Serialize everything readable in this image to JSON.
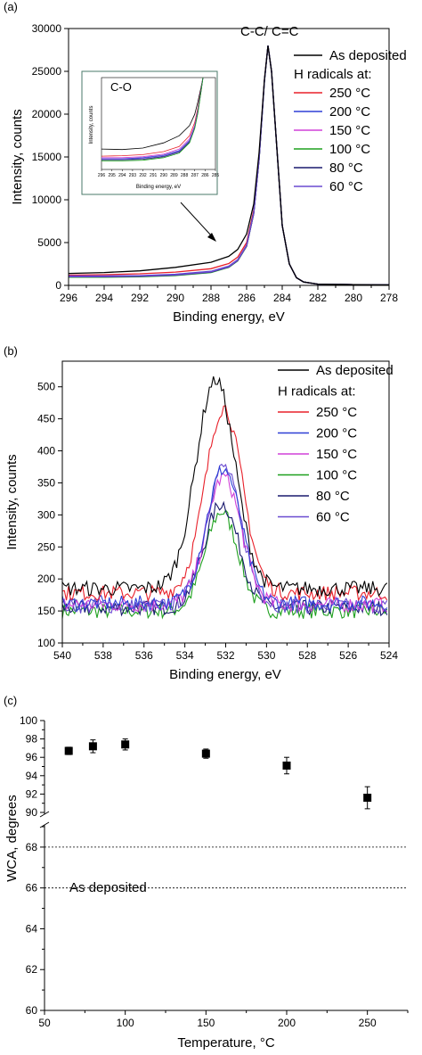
{
  "chart_data": [
    {
      "panel_label": "(a)",
      "type": "line",
      "xlabel": "Binding energy, eV",
      "ylabel": "Intensity, counts",
      "xlim": [
        296,
        278
      ],
      "ylim": [
        0,
        30000
      ],
      "x_ticks": [
        296,
        294,
        292,
        290,
        288,
        286,
        284,
        282,
        280,
        278
      ],
      "y_ticks": [
        0,
        5000,
        10000,
        15000,
        20000,
        25000,
        30000
      ],
      "peak_annotation": "C-C/ C=C",
      "legend_title": "H radicals at:",
      "legend_position": "top-right",
      "series": [
        {
          "name": "As deposited",
          "color": "#000000",
          "x": [
            296,
            294,
            292,
            290,
            288,
            287,
            286.5,
            286,
            285.6,
            285.3,
            285.0,
            284.8,
            284.6,
            284.3,
            284.0,
            283.6,
            283.2,
            282.8,
            282.0,
            280,
            278
          ],
          "y": [
            1400,
            1500,
            1700,
            2100,
            2700,
            3400,
            4200,
            6000,
            9500,
            15500,
            24000,
            28000,
            25000,
            16000,
            7000,
            2500,
            900,
            400,
            150,
            80,
            60
          ]
        },
        {
          "name": "250 °C",
          "color": "#e8202a",
          "x": [
            296,
            294,
            292,
            290,
            288,
            287,
            286.5,
            286,
            285.6,
            285.3,
            285.0,
            284.8,
            284.6,
            284.3,
            284.0,
            283.6,
            283.2,
            282.8,
            282.0,
            280,
            278
          ],
          "y": [
            1200,
            1250,
            1350,
            1550,
            1950,
            2550,
            3300,
            5000,
            8800,
            15000,
            24000,
            28000,
            25000,
            16000,
            7000,
            2500,
            900,
            400,
            150,
            80,
            60
          ]
        },
        {
          "name": "200 °C",
          "color": "#2e3fd6",
          "x": [
            296,
            294,
            292,
            290,
            288,
            287,
            286.5,
            286,
            285.6,
            285.3,
            285.0,
            284.8,
            284.6,
            284.3,
            284.0,
            283.6,
            283.2,
            282.8,
            282.0,
            280,
            278
          ],
          "y": [
            1100,
            1100,
            1150,
            1300,
            1650,
            2250,
            3000,
            4700,
            8500,
            14800,
            23900,
            28000,
            25000,
            16000,
            7000,
            2500,
            900,
            400,
            150,
            80,
            60
          ]
        },
        {
          "name": "150 °C",
          "color": "#d040d8",
          "x": [
            296,
            294,
            292,
            290,
            288,
            287,
            286.5,
            286,
            285.6,
            285.3,
            285.0,
            284.8,
            284.6,
            284.3,
            284.0,
            283.6,
            283.2,
            282.8,
            282.0,
            280,
            278
          ],
          "y": [
            1050,
            1050,
            1100,
            1250,
            1600,
            2200,
            2950,
            4650,
            8450,
            14750,
            23900,
            28000,
            25000,
            16000,
            7000,
            2500,
            900,
            400,
            150,
            80,
            60
          ]
        },
        {
          "name": "100 °C",
          "color": "#1ea01e",
          "x": [
            296,
            294,
            292,
            290,
            288,
            287,
            286.5,
            286,
            285.6,
            285.3,
            285.0,
            284.8,
            284.6,
            284.3,
            284.0,
            283.6,
            283.2,
            282.8,
            282.0,
            280,
            278
          ],
          "y": [
            950,
            950,
            1000,
            1150,
            1500,
            2100,
            2850,
            4550,
            8400,
            14700,
            23850,
            28000,
            25000,
            16000,
            7000,
            2500,
            900,
            400,
            150,
            80,
            60
          ]
        },
        {
          "name": "80 °C",
          "color": "#1a1a6e",
          "x": [
            296,
            294,
            292,
            290,
            288,
            287,
            286.5,
            286,
            285.6,
            285.3,
            285.0,
            284.8,
            284.6,
            284.3,
            284.0,
            283.6,
            283.2,
            282.8,
            282.0,
            280,
            278
          ],
          "y": [
            1000,
            1000,
            1050,
            1200,
            1550,
            2150,
            2900,
            4600,
            8400,
            14700,
            23850,
            28000,
            25000,
            16000,
            7000,
            2500,
            900,
            400,
            150,
            80,
            60
          ]
        },
        {
          "name": "60 °C",
          "color": "#6a4ad0",
          "x": [
            296,
            294,
            292,
            290,
            288,
            287,
            286.5,
            286,
            285.6,
            285.3,
            285.0,
            284.8,
            284.6,
            284.3,
            284.0,
            283.6,
            283.2,
            282.8,
            282.0,
            280,
            278
          ],
          "y": [
            1020,
            1030,
            1080,
            1230,
            1580,
            2180,
            2930,
            4630,
            8430,
            14730,
            23880,
            28000,
            25000,
            16000,
            7000,
            2500,
            900,
            400,
            150,
            80,
            60
          ]
        }
      ],
      "inset": {
        "label": "C-O",
        "xlabel": "Binding energy, eV",
        "ylabel": "Intensity, counts",
        "xlim": [
          296,
          285
        ],
        "x_ticks": [
          296,
          295,
          294,
          293,
          292,
          291,
          290,
          289,
          288,
          287,
          286,
          285
        ],
        "series": [
          {
            "color": "#000000",
            "x": [
              296,
              294,
              292,
              290,
              288.5,
              287.5,
              287,
              286.7,
              286.4,
              286.2
            ],
            "y": [
              3000,
              2950,
              3100,
              3600,
              4300,
              5300,
              6400,
              7600,
              9000,
              10000
            ]
          },
          {
            "color": "#e8202a",
            "x": [
              296,
              294,
              292,
              290,
              288.5,
              287.5,
              287,
              286.7,
              286.4,
              286.2
            ],
            "y": [
              2300,
              2350,
              2450,
              2750,
              3250,
              4300,
              5600,
              7000,
              8800,
              10000
            ]
          },
          {
            "color": "#d040d8",
            "x": [
              296,
              294,
              292,
              290,
              288.5,
              287.5,
              287,
              286.7,
              286.4,
              286.2
            ],
            "y": [
              2150,
              2150,
              2250,
              2500,
              3000,
              4000,
              5300,
              6800,
              8700,
              10000
            ]
          },
          {
            "color": "#2e3fd6",
            "x": [
              296,
              294,
              292,
              290,
              288.5,
              287.5,
              287,
              286.7,
              286.4,
              286.2
            ],
            "y": [
              2050,
              2050,
              2150,
              2400,
              2850,
              3850,
              5200,
              6700,
              8650,
              10000
            ]
          },
          {
            "color": "#1a1a6e",
            "x": [
              296,
              294,
              292,
              290,
              288.5,
              287.5,
              287,
              286.7,
              286.4,
              286.2
            ],
            "y": [
              1950,
              1950,
              2000,
              2250,
              2700,
              3700,
              5100,
              6600,
              8600,
              10000
            ]
          },
          {
            "color": "#6a4ad0",
            "x": [
              296,
              294,
              292,
              290,
              288.5,
              287.5,
              287,
              286.7,
              286.4,
              286.2
            ],
            "y": [
              2000,
              2000,
              2080,
              2320,
              2780,
              3780,
              5150,
              6650,
              8620,
              10000
            ]
          },
          {
            "color": "#1ea01e",
            "x": [
              296,
              294,
              292,
              290,
              288.5,
              287.5,
              287,
              286.7,
              286.4,
              286.2
            ],
            "y": [
              1850,
              1850,
              1900,
              2150,
              2600,
              3600,
              5000,
              6500,
              8550,
              10000
            ]
          }
        ]
      }
    },
    {
      "panel_label": "(b)",
      "type": "line",
      "xlabel": "Binding energy, eV",
      "ylabel": "Intensity, counts",
      "xlim": [
        540,
        524
      ],
      "ylim": [
        100,
        540
      ],
      "x_ticks": [
        540,
        538,
        536,
        534,
        532,
        530,
        528,
        526,
        524
      ],
      "y_ticks": [
        100,
        150,
        200,
        250,
        300,
        350,
        400,
        450,
        500
      ],
      "legend_title": "H radicals at:",
      "legend_position": "top-right",
      "series": [
        {
          "name": "As deposited",
          "color": "#000000",
          "base": 185,
          "peak": 512,
          "center": 532.5,
          "width": 0.95
        },
        {
          "name": "250 °C",
          "color": "#e8202a",
          "base": 178,
          "peak": 468,
          "center": 532.1,
          "width": 0.9
        },
        {
          "name": "200 °C",
          "color": "#2e3fd6",
          "base": 162,
          "peak": 372,
          "center": 532.1,
          "width": 0.85
        },
        {
          "name": "150 °C",
          "color": "#d040d8",
          "base": 160,
          "peak": 360,
          "center": 532.1,
          "width": 0.85
        },
        {
          "name": "100 °C",
          "color": "#1ea01e",
          "base": 150,
          "peak": 305,
          "center": 532.2,
          "width": 0.8
        },
        {
          "name": "80 °C",
          "color": "#1a1a6e",
          "base": 155,
          "peak": 318,
          "center": 532.2,
          "width": 0.85
        },
        {
          "name": "60 °C",
          "color": "#6a4ad0",
          "base": 158,
          "peak": 375,
          "center": 532.1,
          "width": 0.85
        }
      ]
    },
    {
      "panel_label": "(c)",
      "type": "scatter",
      "xlabel": "Temperature, °C",
      "ylabel": "WCA, degrees",
      "xlim": [
        50,
        275
      ],
      "x_ticks": [
        50,
        100,
        150,
        200,
        250
      ],
      "y_upper_ticks": [
        90,
        92,
        94,
        96,
        98,
        100
      ],
      "y_lower_ticks": [
        60,
        62,
        64,
        66,
        68
      ],
      "ylim_upper": [
        90,
        100
      ],
      "ylim_lower": [
        60,
        69
      ],
      "points": [
        {
          "x": 65,
          "y": 96.7,
          "err": 0.4
        },
        {
          "x": 80,
          "y": 97.2,
          "err": 0.7
        },
        {
          "x": 100,
          "y": 97.4,
          "err": 0.6
        },
        {
          "x": 150,
          "y": 96.4,
          "err": 0.5
        },
        {
          "x": 200,
          "y": 95.1,
          "err": 0.9
        },
        {
          "x": 250,
          "y": 91.6,
          "err": 1.2
        }
      ],
      "reference_band": {
        "label": "As deposited",
        "lower": 66,
        "upper": 68
      }
    }
  ]
}
